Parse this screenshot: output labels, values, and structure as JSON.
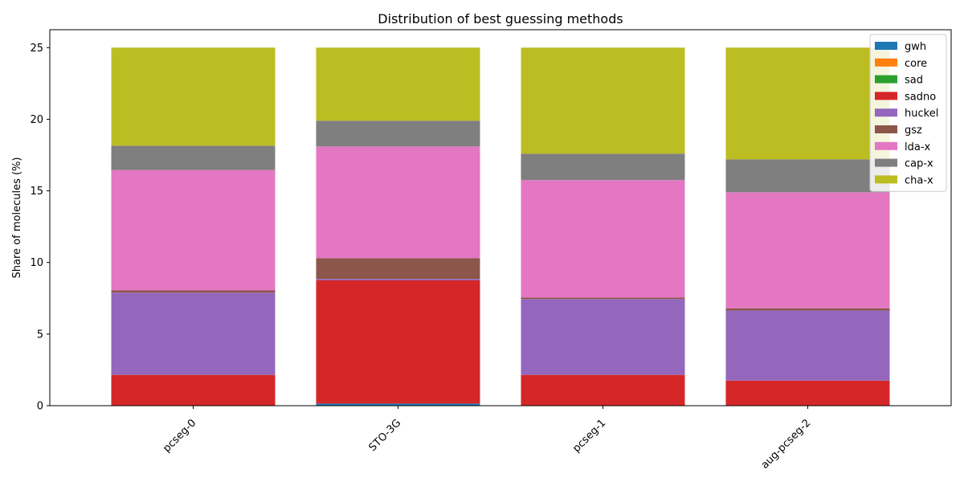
{
  "chart_data": {
    "type": "bar",
    "stacked": true,
    "title": "Distribution of best guessing methods",
    "xlabel": "",
    "ylabel": "Share of molecules (%)",
    "ylim": [
      0,
      26.25
    ],
    "yticks": [
      0,
      5,
      10,
      15,
      20,
      25
    ],
    "categories": [
      "pcseg-0",
      "STO-3G",
      "pcseg-1",
      "aug-pcseg-2"
    ],
    "legend_position": "top-right",
    "grid": false,
    "series": [
      {
        "name": "gwh",
        "color": "#1f77b4",
        "values": [
          0.0,
          0.15,
          0.0,
          0.0
        ]
      },
      {
        "name": "core",
        "color": "#ff7f0e",
        "values": [
          0.0,
          0.0,
          0.0,
          0.0
        ]
      },
      {
        "name": "sad",
        "color": "#2ca02c",
        "values": [
          0.0,
          0.0,
          0.0,
          0.0
        ]
      },
      {
        "name": "sadno",
        "color": "#d62728",
        "values": [
          2.15,
          8.6,
          2.15,
          1.75
        ]
      },
      {
        "name": "huckel",
        "color": "#9467bd",
        "values": [
          5.75,
          0.1,
          5.3,
          4.9
        ]
      },
      {
        "name": "gsz",
        "color": "#8c564b",
        "values": [
          0.15,
          1.45,
          0.1,
          0.15
        ]
      },
      {
        "name": "lda-x",
        "color": "#e377c2",
        "values": [
          8.4,
          7.8,
          8.2,
          8.1
        ]
      },
      {
        "name": "cap-x",
        "color": "#7f7f7f",
        "values": [
          1.7,
          1.8,
          1.85,
          2.3
        ]
      },
      {
        "name": "cha-x",
        "color": "#bcbd22",
        "values": [
          6.85,
          5.1,
          7.4,
          7.8
        ]
      }
    ]
  }
}
